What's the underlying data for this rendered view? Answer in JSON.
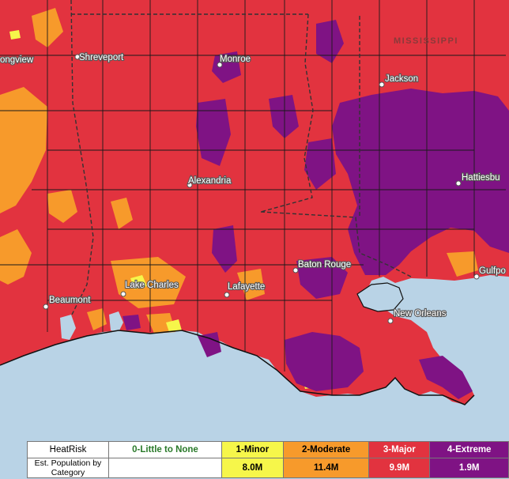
{
  "map": {
    "state_label": "MISSISSIPPI",
    "cities": [
      {
        "name": "Shreveport"
      },
      {
        "name": "Monroe"
      },
      {
        "name": "Jackson"
      },
      {
        "name": "ongview"
      },
      {
        "name": "Alexandria"
      },
      {
        "name": "Hattiesbu"
      },
      {
        "name": "Baton Rouge"
      },
      {
        "name": "Gulfpo"
      },
      {
        "name": "Lake Charles"
      },
      {
        "name": "Lafayette"
      },
      {
        "name": "Beaumont"
      },
      {
        "name": "New Orleans"
      }
    ]
  },
  "legend": {
    "row1_label": "HeatRisk",
    "row2_label": "Est. Population by Category",
    "categories": [
      {
        "label": "0-Little to None",
        "population": "",
        "color": "#ffffff"
      },
      {
        "label": "1-Minor",
        "population": "8.0M",
        "color": "#f6f64a"
      },
      {
        "label": "2-Moderate",
        "population": "11.4M",
        "color": "#f79a2b"
      },
      {
        "label": "3-Major",
        "population": "9.9M",
        "color": "#e2333f"
      },
      {
        "label": "4-Extreme",
        "population": "1.9M",
        "color": "#7f1384"
      }
    ]
  }
}
